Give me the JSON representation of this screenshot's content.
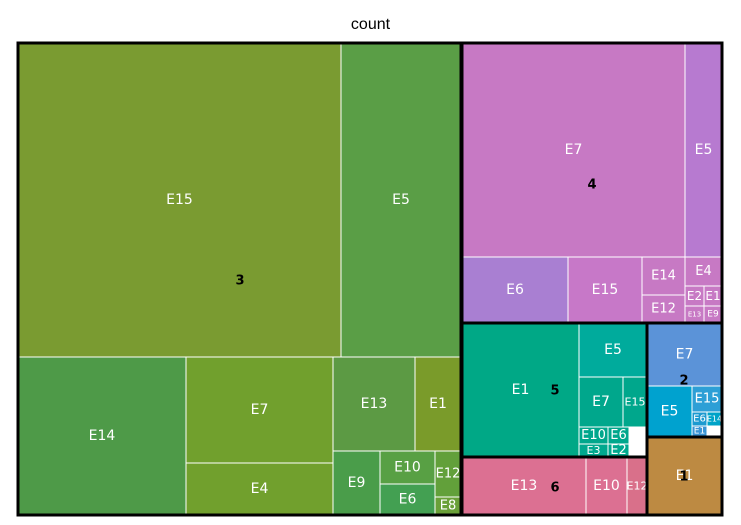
{
  "chart_data": {
    "type": "treemap",
    "title": "count",
    "groups": [
      {
        "label": "3",
        "color": "#6f9a2e",
        "children": [
          {
            "label": "E15",
            "color": "#7a9b31"
          },
          {
            "label": "E5",
            "color": "#5a9e46"
          },
          {
            "label": "E14",
            "color": "#4e9a48"
          },
          {
            "label": "E7",
            "color": "#71a02d"
          },
          {
            "label": "E4",
            "color": "#71a02d"
          },
          {
            "label": "E13",
            "color": "#5c9a44"
          },
          {
            "label": "E1",
            "color": "#7a9b2a"
          },
          {
            "label": "E9",
            "color": "#4a9d4a"
          },
          {
            "label": "E10",
            "color": "#58a044"
          },
          {
            "label": "E6",
            "color": "#43a052"
          },
          {
            "label": "E12",
            "color": "#62a03a"
          },
          {
            "label": "E8",
            "color": "#6aa038"
          }
        ]
      },
      {
        "label": "4",
        "color": "#c37bc8",
        "children": [
          {
            "label": "E7",
            "color": "#c779c4"
          },
          {
            "label": "E5",
            "color": "#b77ad0"
          },
          {
            "label": "E6",
            "color": "#a97fd2"
          },
          {
            "label": "E15",
            "color": "#c778c8"
          },
          {
            "label": "E14",
            "color": "#c779c4"
          },
          {
            "label": "E4",
            "color": "#c779c4"
          },
          {
            "label": "E12",
            "color": "#c779c4"
          },
          {
            "label": "E2",
            "color": "#c779c4"
          },
          {
            "label": "E1",
            "color": "#c779c4"
          },
          {
            "label": "E13",
            "color": "#c779c4"
          },
          {
            "label": "E9",
            "color": "#c779c4"
          }
        ]
      },
      {
        "label": "5",
        "color": "#00a98a",
        "children": [
          {
            "label": "E1",
            "color": "#00a886"
          },
          {
            "label": "E5",
            "color": "#00ab9c"
          },
          {
            "label": "E7",
            "color": "#00a78c"
          },
          {
            "label": "E15",
            "color": "#00a78c"
          },
          {
            "label": "E10",
            "color": "#00a78c"
          },
          {
            "label": "E6",
            "color": "#00a78c"
          },
          {
            "label": "E3",
            "color": "#00a88e"
          },
          {
            "label": "E2",
            "color": "#00a88e"
          }
        ]
      },
      {
        "label": "2",
        "color": "#3b8fd6",
        "children": [
          {
            "label": "E7",
            "color": "#5b93d8"
          },
          {
            "label": "E5",
            "color": "#00a2cf"
          },
          {
            "label": "E15",
            "color": "#2d9fd6"
          },
          {
            "label": "E6",
            "color": "#1d9ad0"
          },
          {
            "label": "E14",
            "color": "#00a3c8"
          },
          {
            "label": "E1",
            "color": "#3a94d4"
          }
        ]
      },
      {
        "label": "6",
        "color": "#dd7090",
        "children": [
          {
            "label": "E13",
            "color": "#dc7092"
          },
          {
            "label": "E10",
            "color": "#dc7092"
          },
          {
            "label": "E12",
            "color": "#d9708a"
          }
        ]
      },
      {
        "label": "1",
        "color": "#b88a43",
        "children": [
          {
            "label": "E1",
            "color": "#bd8a42"
          }
        ]
      }
    ]
  }
}
